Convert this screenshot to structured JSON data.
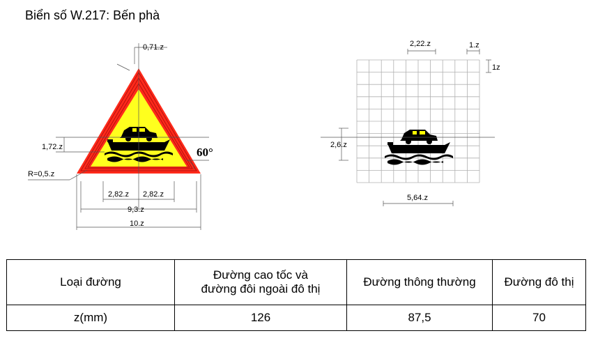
{
  "title": "Biển số W.217: Bến phà",
  "sign_dims": {
    "tip": "0,71.z",
    "height": "1,72.z",
    "radius": "R=0,5.z",
    "angle": "60°",
    "half_left": "2,82.z",
    "half_right": "2,82.z",
    "inner_width": "9,3.z",
    "outer_width": "10.z"
  },
  "grid_dims": {
    "top": "2,22.z",
    "top_right": "1.z",
    "right": "1z",
    "left": "2,6.z",
    "bottom": "5,64.z"
  },
  "table": {
    "header": [
      "Loại đường",
      "Đường cao tốc và\nđường đôi ngoài đô thị",
      "Đường thông thường",
      "Đường đô thị"
    ],
    "row": [
      "z(mm)",
      "126",
      "87,5",
      "70"
    ]
  },
  "colors": {
    "border": "#ff2a1a",
    "fill": "#ffff1e",
    "symbol": "#000000",
    "grid": "#b0b0b0"
  }
}
